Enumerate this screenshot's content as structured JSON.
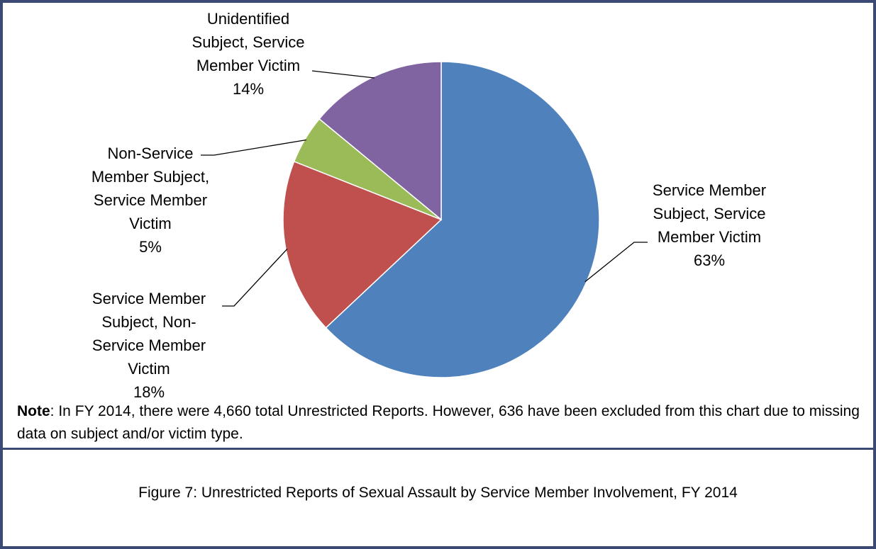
{
  "chart_data": {
    "type": "pie",
    "categories": [
      "Service Member Subject, Service Member Victim",
      "Service Member Subject, Non-Service Member Victim",
      "Non-Service Member Subject, Service Member Victim",
      "Unidentified Subject, Service Member Victim"
    ],
    "values": [
      63,
      18,
      5,
      14
    ],
    "value_labels": [
      "63%",
      "18%",
      "5%",
      "14%"
    ],
    "colors": [
      "#4f81bd",
      "#c0504d",
      "#9bbb59",
      "#8064a2"
    ],
    "note_label": "Note",
    "note": ": In FY 2014, there were 4,660 total Unrestricted Reports.  However, 636 have been excluded from this chart due to missing data on subject and/or victim type.",
    "caption": "Figure 7: Unrestricted Reports of Sexual Assault by Service Member Involvement, FY 2014"
  }
}
